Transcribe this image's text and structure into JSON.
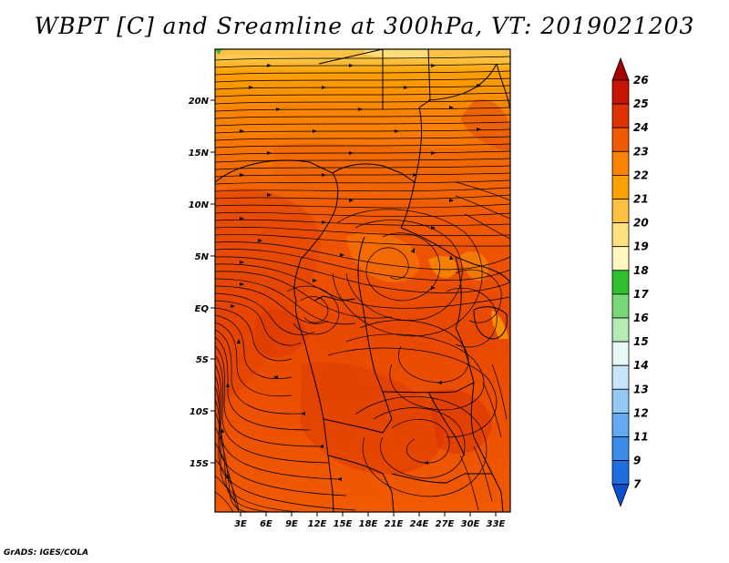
{
  "title": "WBPT [C] and Sreamline at 300hPa, VT: 2019021203",
  "credit": "GrADS: IGES/COLA",
  "map": {
    "variable": "WBPT [C]",
    "level": "300hPa",
    "valid_time": "2019021203",
    "lat_labels": [
      "20N",
      "15N",
      "10N",
      "5N",
      "EQ",
      "5S",
      "10S",
      "15S"
    ],
    "lon_labels": [
      "3E",
      "6E",
      "9E",
      "12E",
      "15E",
      "18E",
      "21E",
      "24E",
      "27E",
      "30E",
      "33E"
    ]
  },
  "colorbar": {
    "levels": [
      "26",
      "25",
      "24",
      "23",
      "22",
      "21",
      "20",
      "19",
      "18",
      "17",
      "16",
      "15",
      "14",
      "13",
      "12",
      "11",
      "9",
      "7"
    ],
    "colors": [
      "#a50000",
      "#c81400",
      "#e03200",
      "#f05a00",
      "#fa8200",
      "#fca000",
      "#fdc040",
      "#fde080",
      "#fff8c0",
      "#2ec02e",
      "#78d878",
      "#b4ecb4",
      "#e6f8f8",
      "#c8e4fa",
      "#96c8f5",
      "#64aaf0",
      "#3c8ceb",
      "#1e6ee1",
      "#0a50d2"
    ]
  }
}
